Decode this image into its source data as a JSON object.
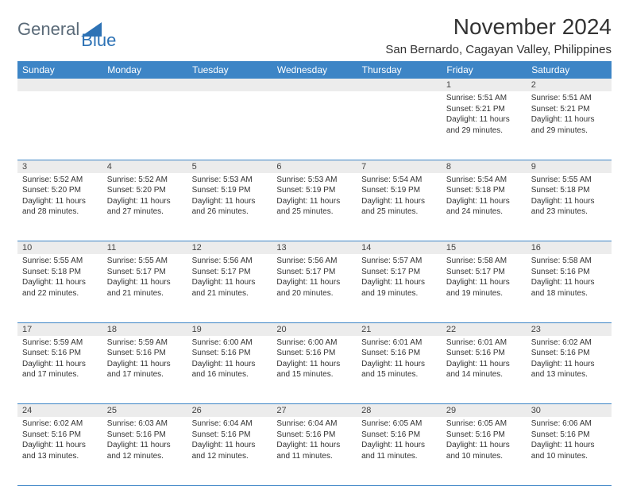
{
  "brand": {
    "part1": "General",
    "part2": "Blue",
    "color1": "#5a6a78",
    "color2": "#2d72b5"
  },
  "title": "November 2024",
  "location": "San Bernardo, Cagayan Valley, Philippines",
  "header_bg": "#3d85c6",
  "daynum_bg": "#ececec",
  "border_color": "#3d85c6",
  "dayNames": [
    "Sunday",
    "Monday",
    "Tuesday",
    "Wednesday",
    "Thursday",
    "Friday",
    "Saturday"
  ],
  "weeks": [
    [
      null,
      null,
      null,
      null,
      null,
      {
        "n": "1",
        "sr": "5:51 AM",
        "ss": "5:21 PM",
        "dl": "11 hours and 29 minutes."
      },
      {
        "n": "2",
        "sr": "5:51 AM",
        "ss": "5:21 PM",
        "dl": "11 hours and 29 minutes."
      }
    ],
    [
      {
        "n": "3",
        "sr": "5:52 AM",
        "ss": "5:20 PM",
        "dl": "11 hours and 28 minutes."
      },
      {
        "n": "4",
        "sr": "5:52 AM",
        "ss": "5:20 PM",
        "dl": "11 hours and 27 minutes."
      },
      {
        "n": "5",
        "sr": "5:53 AM",
        "ss": "5:19 PM",
        "dl": "11 hours and 26 minutes."
      },
      {
        "n": "6",
        "sr": "5:53 AM",
        "ss": "5:19 PM",
        "dl": "11 hours and 25 minutes."
      },
      {
        "n": "7",
        "sr": "5:54 AM",
        "ss": "5:19 PM",
        "dl": "11 hours and 25 minutes."
      },
      {
        "n": "8",
        "sr": "5:54 AM",
        "ss": "5:18 PM",
        "dl": "11 hours and 24 minutes."
      },
      {
        "n": "9",
        "sr": "5:55 AM",
        "ss": "5:18 PM",
        "dl": "11 hours and 23 minutes."
      }
    ],
    [
      {
        "n": "10",
        "sr": "5:55 AM",
        "ss": "5:18 PM",
        "dl": "11 hours and 22 minutes."
      },
      {
        "n": "11",
        "sr": "5:55 AM",
        "ss": "5:17 PM",
        "dl": "11 hours and 21 minutes."
      },
      {
        "n": "12",
        "sr": "5:56 AM",
        "ss": "5:17 PM",
        "dl": "11 hours and 21 minutes."
      },
      {
        "n": "13",
        "sr": "5:56 AM",
        "ss": "5:17 PM",
        "dl": "11 hours and 20 minutes."
      },
      {
        "n": "14",
        "sr": "5:57 AM",
        "ss": "5:17 PM",
        "dl": "11 hours and 19 minutes."
      },
      {
        "n": "15",
        "sr": "5:58 AM",
        "ss": "5:17 PM",
        "dl": "11 hours and 19 minutes."
      },
      {
        "n": "16",
        "sr": "5:58 AM",
        "ss": "5:16 PM",
        "dl": "11 hours and 18 minutes."
      }
    ],
    [
      {
        "n": "17",
        "sr": "5:59 AM",
        "ss": "5:16 PM",
        "dl": "11 hours and 17 minutes."
      },
      {
        "n": "18",
        "sr": "5:59 AM",
        "ss": "5:16 PM",
        "dl": "11 hours and 17 minutes."
      },
      {
        "n": "19",
        "sr": "6:00 AM",
        "ss": "5:16 PM",
        "dl": "11 hours and 16 minutes."
      },
      {
        "n": "20",
        "sr": "6:00 AM",
        "ss": "5:16 PM",
        "dl": "11 hours and 15 minutes."
      },
      {
        "n": "21",
        "sr": "6:01 AM",
        "ss": "5:16 PM",
        "dl": "11 hours and 15 minutes."
      },
      {
        "n": "22",
        "sr": "6:01 AM",
        "ss": "5:16 PM",
        "dl": "11 hours and 14 minutes."
      },
      {
        "n": "23",
        "sr": "6:02 AM",
        "ss": "5:16 PM",
        "dl": "11 hours and 13 minutes."
      }
    ],
    [
      {
        "n": "24",
        "sr": "6:02 AM",
        "ss": "5:16 PM",
        "dl": "11 hours and 13 minutes."
      },
      {
        "n": "25",
        "sr": "6:03 AM",
        "ss": "5:16 PM",
        "dl": "11 hours and 12 minutes."
      },
      {
        "n": "26",
        "sr": "6:04 AM",
        "ss": "5:16 PM",
        "dl": "11 hours and 12 minutes."
      },
      {
        "n": "27",
        "sr": "6:04 AM",
        "ss": "5:16 PM",
        "dl": "11 hours and 11 minutes."
      },
      {
        "n": "28",
        "sr": "6:05 AM",
        "ss": "5:16 PM",
        "dl": "11 hours and 11 minutes."
      },
      {
        "n": "29",
        "sr": "6:05 AM",
        "ss": "5:16 PM",
        "dl": "11 hours and 10 minutes."
      },
      {
        "n": "30",
        "sr": "6:06 AM",
        "ss": "5:16 PM",
        "dl": "11 hours and 10 minutes."
      }
    ]
  ],
  "labels": {
    "sunrise": "Sunrise:",
    "sunset": "Sunset:",
    "daylight": "Daylight:"
  }
}
